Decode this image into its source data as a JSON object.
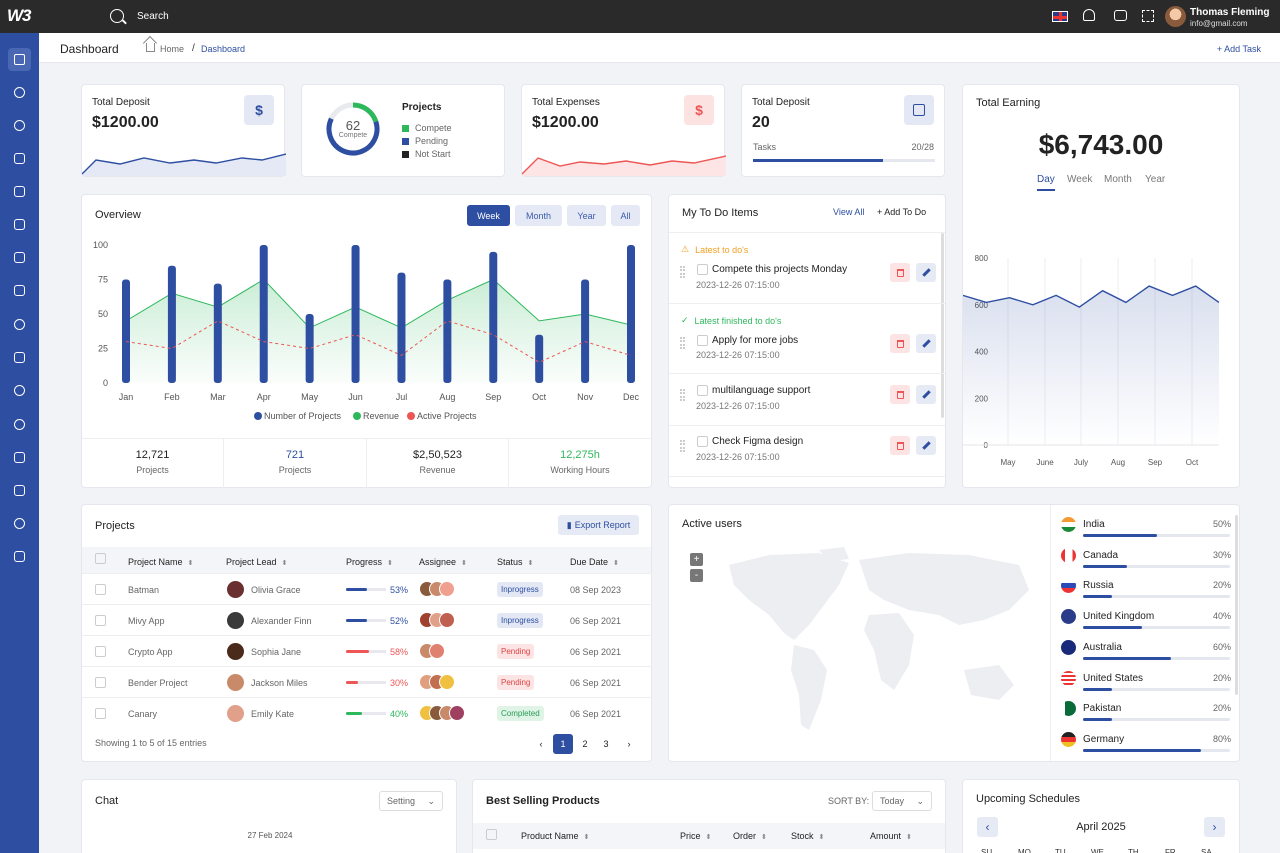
{
  "app": {
    "logo": "W3",
    "search_label": "Search"
  },
  "user": {
    "name": "Thomas Fleming",
    "email": "info@gmail.com"
  },
  "subheader": {
    "title": "Dashboard",
    "crumb_home": "Home",
    "crumb_sep": "/",
    "crumb_current": "Dashboard",
    "add_task": "+ Add Task"
  },
  "deposit": {
    "title": "Total Deposit",
    "value": "$1200.00",
    "badge": "$"
  },
  "projects_card": {
    "title": "Projects",
    "donut_value": "62",
    "donut_label": "Compete",
    "legend": [
      "Compete",
      "Pending",
      "Not Start"
    ],
    "donut_fraction": 0.62
  },
  "expenses": {
    "title": "Total Expenses",
    "value": "$1200.00",
    "badge": "$"
  },
  "deposit2": {
    "title": "Total Deposit",
    "value": "20",
    "tasks_label": "Tasks",
    "tasks_count": "20/28",
    "progress": 0.714
  },
  "overview": {
    "title": "Overview",
    "tabs": [
      "Week",
      "Month",
      "Year",
      "All"
    ],
    "legend": [
      "Number of Projects",
      "Revenue",
      "Active Projects"
    ],
    "summary": [
      {
        "value": "12,721",
        "label": "Projects"
      },
      {
        "value": "721",
        "label": "Projects"
      },
      {
        "value": "$2,50,523",
        "label": "Revenue"
      },
      {
        "value": "12,275h",
        "label": "Working Hours"
      }
    ]
  },
  "chart_data": {
    "type": "bar",
    "categories": [
      "Jan",
      "Feb",
      "Mar",
      "Apr",
      "May",
      "Jun",
      "Jul",
      "Aug",
      "Sep",
      "Oct",
      "Nov",
      "Dec"
    ],
    "ylim": [
      0,
      100
    ],
    "yticks": [
      0,
      25,
      50,
      75,
      100
    ],
    "series": [
      {
        "name": "Number of Projects",
        "type": "bar",
        "values": [
          75,
          85,
          72,
          100,
          50,
          100,
          80,
          75,
          95,
          35,
          75,
          100
        ]
      },
      {
        "name": "Revenue",
        "type": "area",
        "values": [
          45,
          65,
          55,
          75,
          40,
          55,
          40,
          60,
          75,
          45,
          50,
          42
        ]
      },
      {
        "name": "Active Projects",
        "type": "line",
        "values": [
          30,
          25,
          45,
          30,
          25,
          35,
          20,
          45,
          35,
          15,
          30,
          20
        ]
      }
    ]
  },
  "earning_chart": {
    "type": "area",
    "categories": [
      "May",
      "June",
      "July",
      "Aug",
      "Sep",
      "Oct"
    ],
    "ylim": [
      0,
      800
    ],
    "yticks": [
      0,
      200,
      400,
      600,
      800
    ],
    "values": [
      640,
      610,
      630,
      600,
      640,
      590,
      660,
      610,
      680,
      640,
      680,
      610
    ]
  },
  "todo": {
    "title": "My To Do Items",
    "view_all": "View All",
    "add": "+ Add To Do",
    "latest_label": "Latest to do's",
    "finished_label": "Latest finished to do's",
    "items": [
      {
        "text": "Compete this projects Monday",
        "date": "2023-12-26 07:15:00"
      },
      {
        "text": "Apply for more jobs",
        "date": "2023-12-26 07:15:00"
      },
      {
        "text": "multilanguage support",
        "date": "2023-12-26 07:15:00"
      },
      {
        "text": "Check Figma design",
        "date": "2023-12-26 07:15:00"
      }
    ]
  },
  "earning": {
    "title": "Total Earning",
    "value": "$6,743.00",
    "tabs": [
      "Day",
      "Week",
      "Month",
      "Year"
    ]
  },
  "projects_table": {
    "title": "Projects",
    "export": "Export Report",
    "headers": [
      "Project Name",
      "Project Lead",
      "Progress",
      "Assignee",
      "Status",
      "Due Date"
    ],
    "rows": [
      {
        "name": "Batman",
        "lead": "Olivia Grace",
        "progress": "53%",
        "progress_value": 0.53,
        "status": "Inprogress",
        "due": "08 Sep 2023"
      },
      {
        "name": "Mivy App",
        "lead": "Alexander Finn",
        "progress": "52%",
        "progress_value": 0.52,
        "status": "Inprogress",
        "due": "06 Sep 2021"
      },
      {
        "name": "Crypto App",
        "lead": "Sophia Jane",
        "progress": "58%",
        "progress_value": 0.58,
        "status": "Pending",
        "due": "06 Sep 2021"
      },
      {
        "name": "Bender Project",
        "lead": "Jackson Miles",
        "progress": "30%",
        "progress_value": 0.3,
        "status": "Pending",
        "due": "06 Sep 2021"
      },
      {
        "name": "Canary",
        "lead": "Emily Kate",
        "progress": "40%",
        "progress_value": 0.4,
        "status": "Completed",
        "due": "06 Sep 2021"
      }
    ],
    "footer": "Showing 1 to 5 of 15 entries",
    "pages": [
      "1",
      "2",
      "3"
    ],
    "prev": "‹",
    "next": "›"
  },
  "active_users": {
    "title": "Active users",
    "zoom_in": "+",
    "zoom_out": "-",
    "countries": [
      {
        "name": "India",
        "pct": "50%",
        "value": 0.5
      },
      {
        "name": "Canada",
        "pct": "30%",
        "value": 0.3
      },
      {
        "name": "Russia",
        "pct": "20%",
        "value": 0.2
      },
      {
        "name": "United Kingdom",
        "pct": "40%",
        "value": 0.4
      },
      {
        "name": "Australia",
        "pct": "60%",
        "value": 0.6
      },
      {
        "name": "United States",
        "pct": "20%",
        "value": 0.2
      },
      {
        "name": "Pakistan",
        "pct": "20%",
        "value": 0.2
      },
      {
        "name": "Germany",
        "pct": "80%",
        "value": 0.8
      }
    ]
  },
  "chat": {
    "title": "Chat",
    "setting": "Setting",
    "date": "27 Feb 2024"
  },
  "best_selling": {
    "title": "Best Selling Products",
    "sort_label": "SORT BY:",
    "sort_value": "Today",
    "headers": [
      "Product Name",
      "Price",
      "Order",
      "Stock",
      "Amount"
    ]
  },
  "schedules": {
    "title": "Upcoming Schedules",
    "month": "April 2025",
    "days": [
      "SU",
      "MO",
      "TU",
      "WE",
      "TH",
      "FR",
      "SA"
    ]
  },
  "colors": {
    "primary": "#2d4ea1",
    "success": "#2eb85c",
    "danger": "#ee5555",
    "warning": "#f0a020"
  }
}
